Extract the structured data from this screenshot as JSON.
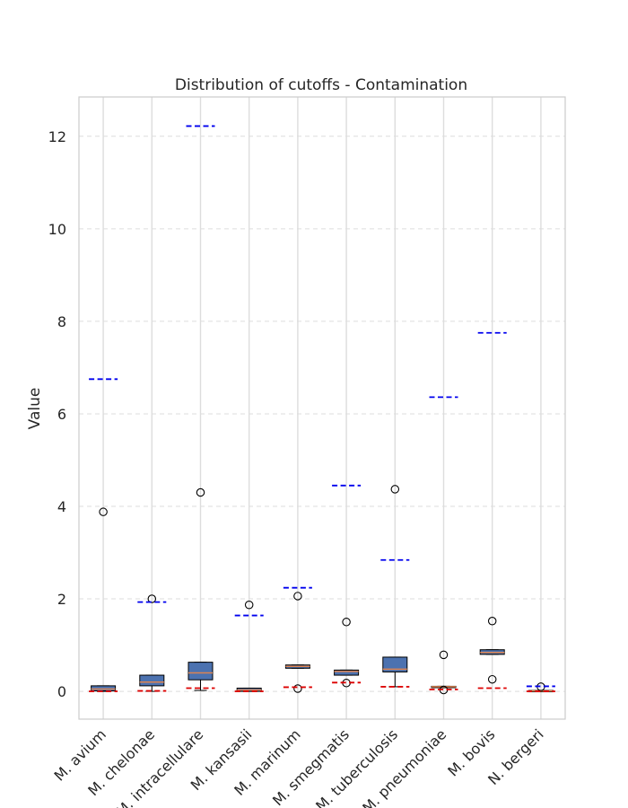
{
  "chart_data": {
    "type": "box",
    "title": "Distribution of cutoffs - Contamination",
    "xlabel": "",
    "ylabel": "Value",
    "ylim": [
      -0.6,
      12.85
    ],
    "yticks": [
      0,
      2,
      4,
      6,
      8,
      10,
      12
    ],
    "grid": true,
    "categories": [
      "M. avium",
      "M. chelonae",
      "M. intracellulare",
      "M. kansasii",
      "M. marinum",
      "M. smegmatis",
      "M. tuberculosis",
      "M. pneumoniae",
      "M. bovis",
      "N. bergeri"
    ],
    "boxes": [
      {
        "q1": 0.01,
        "median": 0.05,
        "q3": 0.12,
        "whisker_low": 0.0,
        "whisker_high": 0.12,
        "outliers": [
          3.88
        ],
        "blue_line": 6.75,
        "red_line": 0.0
      },
      {
        "q1": 0.12,
        "median": 0.2,
        "q3": 0.35,
        "whisker_low": 0.0,
        "whisker_high": 0.35,
        "outliers": [
          2.0
        ],
        "blue_line": 1.93,
        "red_line": 0.01
      },
      {
        "q1": 0.25,
        "median": 0.4,
        "q3": 0.63,
        "whisker_low": 0.02,
        "whisker_high": 0.63,
        "outliers": [
          4.3
        ],
        "blue_line": 12.22,
        "red_line": 0.07
      },
      {
        "q1": 0.0,
        "median": 0.03,
        "q3": 0.07,
        "whisker_low": 0.0,
        "whisker_high": 0.07,
        "outliers": [
          1.87
        ],
        "blue_line": 1.64,
        "red_line": 0.0
      },
      {
        "q1": 0.5,
        "median": 0.54,
        "q3": 0.57,
        "whisker_low": 0.5,
        "whisker_high": 0.57,
        "outliers": [
          2.06,
          0.06
        ],
        "blue_line": 2.24,
        "red_line": 0.09
      },
      {
        "q1": 0.35,
        "median": 0.43,
        "q3": 0.46,
        "whisker_low": 0.35,
        "whisker_high": 0.46,
        "outliers": [
          1.5,
          0.18
        ],
        "blue_line": 4.45,
        "red_line": 0.19
      },
      {
        "q1": 0.42,
        "median": 0.48,
        "q3": 0.74,
        "whisker_low": 0.1,
        "whisker_high": 0.74,
        "outliers": [
          4.37
        ],
        "blue_line": 2.84,
        "red_line": 0.1
      },
      {
        "q1": 0.08,
        "median": 0.1,
        "q3": 0.11,
        "whisker_low": 0.08,
        "whisker_high": 0.11,
        "outliers": [
          0.79,
          0.03
        ],
        "blue_line": 6.36,
        "red_line": 0.04
      },
      {
        "q1": 0.8,
        "median": 0.84,
        "q3": 0.9,
        "whisker_low": 0.8,
        "whisker_high": 0.9,
        "outliers": [
          1.52,
          0.26
        ],
        "blue_line": 7.75,
        "red_line": 0.07
      },
      {
        "q1": 0.0,
        "median": 0.01,
        "q3": 0.02,
        "whisker_low": 0.0,
        "whisker_high": 0.02,
        "outliers": [
          0.1
        ],
        "blue_line": 0.11,
        "red_line": 0.0
      }
    ],
    "colors": {
      "box_fill": "#4c72b0",
      "median": "#dd8452",
      "blue_line": "#0000ee",
      "red_line": "#dd0000",
      "grid": "#dddddd",
      "spine": "#cccccc"
    }
  }
}
